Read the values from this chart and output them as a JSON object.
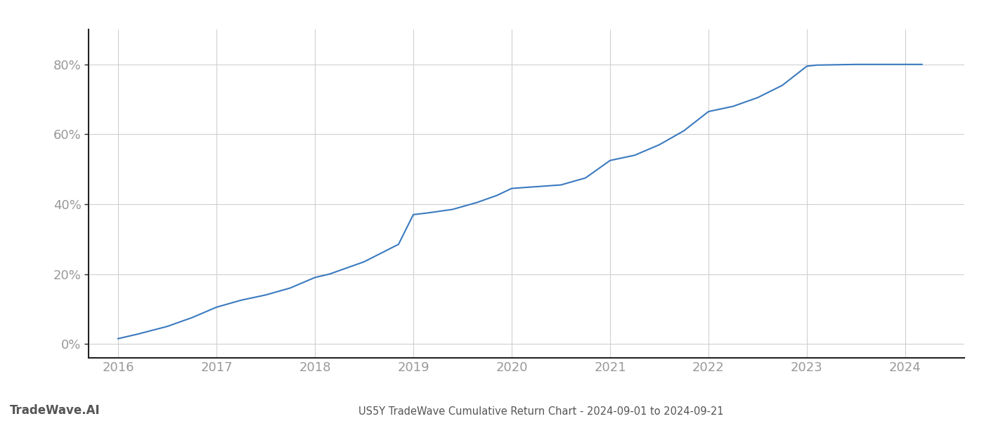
{
  "x": [
    2016.0,
    2016.2,
    2016.5,
    2016.75,
    2017.0,
    2017.25,
    2017.5,
    2017.75,
    2018.0,
    2018.15,
    2018.5,
    2018.85,
    2019.0,
    2019.15,
    2019.4,
    2019.65,
    2019.85,
    2020.0,
    2020.25,
    2020.5,
    2020.75,
    2021.0,
    2021.25,
    2021.5,
    2021.75,
    2022.0,
    2022.25,
    2022.5,
    2022.75,
    2023.0,
    2023.1,
    2023.3,
    2023.5,
    2024.0,
    2024.17
  ],
  "y": [
    1.5,
    2.8,
    5.0,
    7.5,
    10.5,
    12.5,
    14.0,
    16.0,
    19.0,
    20.0,
    23.5,
    28.5,
    37.0,
    37.5,
    38.5,
    40.5,
    42.5,
    44.5,
    45.0,
    45.5,
    47.5,
    52.5,
    54.0,
    57.0,
    61.0,
    66.5,
    68.0,
    70.5,
    74.0,
    79.5,
    79.8,
    79.9,
    80.0,
    80.0,
    80.0
  ],
  "line_color": "#3a7abf",
  "line_width": 1.5,
  "title": "US5Y TradeWave Cumulative Return Chart - 2024-09-01 to 2024-09-21",
  "yticks": [
    0,
    20,
    40,
    60,
    80
  ],
  "ytick_labels": [
    "0%",
    "20%",
    "40%",
    "60%",
    "80%"
  ],
  "xticks": [
    2016,
    2017,
    2018,
    2019,
    2020,
    2021,
    2022,
    2023,
    2024
  ],
  "xlim": [
    2015.7,
    2024.6
  ],
  "ylim": [
    -4,
    90
  ],
  "grid_color": "#d0d0d0",
  "bg_color": "#ffffff",
  "watermark_text": "TradeWave.AI",
  "watermark_color": "#555555",
  "title_color": "#555555",
  "tick_color": "#999999",
  "tick_fontsize": 13,
  "bottom_spine_color": "#222222",
  "left_spine_color": "#222222"
}
